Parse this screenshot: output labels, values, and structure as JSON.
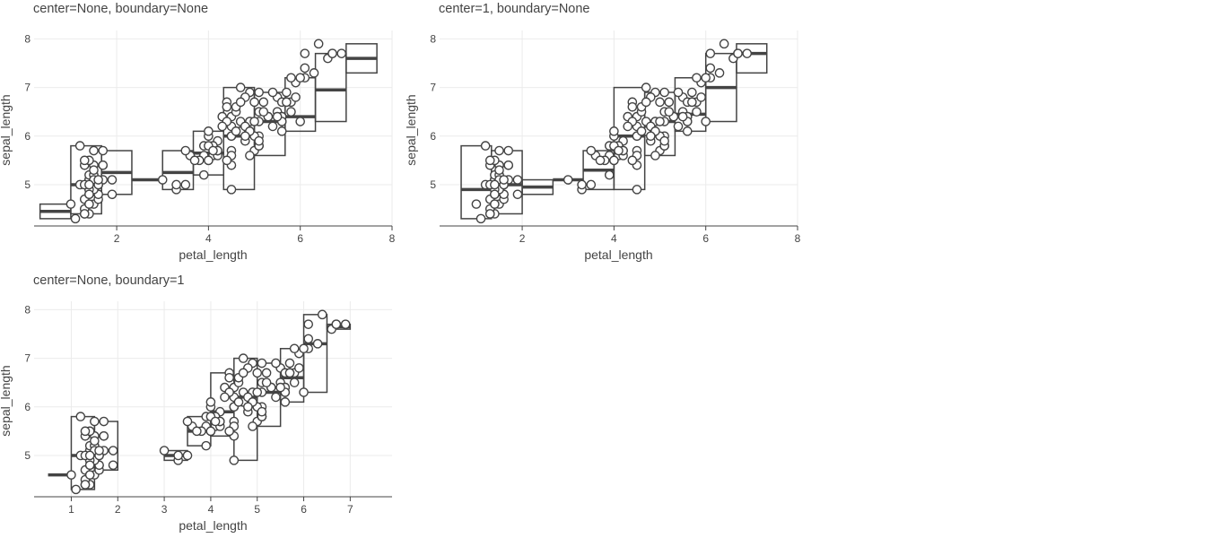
{
  "chart_data": [
    {
      "type": "scatter",
      "title": "center=None, boundary=None",
      "xlabel": "petal_length",
      "ylabel": "sepal_length",
      "xlim": [
        0.2,
        8.0
      ],
      "ylim": [
        4.15,
        8.1
      ],
      "xticks": [
        2,
        4,
        6,
        8
      ],
      "yticks": [
        5,
        6,
        7,
        8
      ],
      "grid": true,
      "bins": [
        {
          "x0": 0.33,
          "x1": 1.0,
          "ymin": 4.3,
          "ymax": 4.6,
          "median": 4.45
        },
        {
          "x0": 1.0,
          "x1": 1.67,
          "ymin": 4.4,
          "ymax": 5.8,
          "median": 5.0
        },
        {
          "x0": 1.67,
          "x1": 2.33,
          "ymin": 4.8,
          "ymax": 5.7,
          "median": 5.25
        },
        {
          "x0": 2.33,
          "x1": 3.0,
          "ymin": 5.1,
          "ymax": 5.1,
          "median": 5.1
        },
        {
          "x0": 3.0,
          "x1": 3.67,
          "ymin": 4.9,
          "ymax": 5.7,
          "median": 5.25
        },
        {
          "x0": 3.67,
          "x1": 4.33,
          "ymin": 5.2,
          "ymax": 6.1,
          "median": 5.65
        },
        {
          "x0": 4.33,
          "x1": 5.0,
          "ymin": 4.9,
          "ymax": 7.0,
          "median": 6.0
        },
        {
          "x0": 5.0,
          "x1": 5.67,
          "ymin": 5.6,
          "ymax": 6.9,
          "median": 6.3
        },
        {
          "x0": 5.67,
          "x1": 6.33,
          "ymin": 6.1,
          "ymax": 7.2,
          "median": 6.4
        },
        {
          "x0": 6.33,
          "x1": 7.0,
          "ymin": 6.3,
          "ymax": 7.7,
          "median": 6.95
        },
        {
          "x0": 7.0,
          "x1": 7.67,
          "ymin": 7.3,
          "ymax": 7.9,
          "median": 7.6
        }
      ]
    },
    {
      "type": "scatter",
      "title": "center=1, boundary=None",
      "xlabel": "petal_length",
      "ylabel": "sepal_length",
      "xlim": [
        0.2,
        8.0
      ],
      "ylim": [
        4.15,
        8.1
      ],
      "xticks": [
        2,
        4,
        6,
        8
      ],
      "yticks": [
        5,
        6,
        7,
        8
      ],
      "grid": true,
      "bins": [
        {
          "x0": 0.67,
          "x1": 1.33,
          "ymin": 4.3,
          "ymax": 5.8,
          "median": 4.9
        },
        {
          "x0": 1.33,
          "x1": 2.0,
          "ymin": 4.4,
          "ymax": 5.7,
          "median": 5.0
        },
        {
          "x0": 2.0,
          "x1": 2.67,
          "ymin": 4.8,
          "ymax": 5.1,
          "median": 4.95
        },
        {
          "x0": 2.67,
          "x1": 3.33,
          "ymin": 5.1,
          "ymax": 5.1,
          "median": 5.1
        },
        {
          "x0": 3.33,
          "x1": 4.0,
          "ymin": 4.9,
          "ymax": 5.7,
          "median": 5.3
        },
        {
          "x0": 4.0,
          "x1": 4.67,
          "ymin": 4.9,
          "ymax": 7.0,
          "median": 6.0
        },
        {
          "x0": 4.67,
          "x1": 5.33,
          "ymin": 5.6,
          "ymax": 6.9,
          "median": 6.3
        },
        {
          "x0": 5.33,
          "x1": 6.0,
          "ymin": 6.1,
          "ymax": 7.2,
          "median": 6.45
        },
        {
          "x0": 6.0,
          "x1": 6.67,
          "ymin": 6.3,
          "ymax": 7.7,
          "median": 7.0
        },
        {
          "x0": 6.67,
          "x1": 7.33,
          "ymin": 7.3,
          "ymax": 7.9,
          "median": 7.7
        }
      ]
    },
    {
      "type": "scatter",
      "title": "center=None, boundary=1",
      "xlabel": "petal_length",
      "ylabel": "sepal_length",
      "xlim": [
        0.2,
        7.9
      ],
      "ylim": [
        4.15,
        8.1
      ],
      "xticks": [
        1,
        2,
        3,
        4,
        5,
        6,
        7
      ],
      "yticks": [
        5,
        6,
        7,
        8
      ],
      "grid": true,
      "bins": [
        {
          "x0": 0.5,
          "x1": 1.0,
          "ymin": 4.6,
          "ymax": 4.6,
          "median": 4.6
        },
        {
          "x0": 1.0,
          "x1": 1.5,
          "ymin": 4.3,
          "ymax": 5.8,
          "median": 5.0
        },
        {
          "x0": 1.5,
          "x1": 2.0,
          "ymin": 4.7,
          "ymax": 5.7,
          "median": 5.1
        },
        {
          "x0": 3.0,
          "x1": 3.5,
          "ymin": 4.9,
          "ymax": 5.1,
          "median": 5.0
        },
        {
          "x0": 3.5,
          "x1": 4.0,
          "ymin": 5.2,
          "ymax": 5.8,
          "median": 5.5
        },
        {
          "x0": 4.0,
          "x1": 4.5,
          "ymin": 5.4,
          "ymax": 6.7,
          "median": 5.9
        },
        {
          "x0": 4.5,
          "x1": 5.0,
          "ymin": 4.9,
          "ymax": 7.0,
          "median": 6.2
        },
        {
          "x0": 5.0,
          "x1": 5.5,
          "ymin": 5.6,
          "ymax": 6.9,
          "median": 6.3
        },
        {
          "x0": 5.5,
          "x1": 6.0,
          "ymin": 6.1,
          "ymax": 7.2,
          "median": 6.6
        },
        {
          "x0": 6.0,
          "x1": 6.5,
          "ymin": 6.3,
          "ymax": 7.9,
          "median": 7.3
        },
        {
          "x0": 6.5,
          "x1": 7.0,
          "ymin": 7.6,
          "ymax": 7.7,
          "median": 7.65
        }
      ]
    }
  ],
  "points": [
    [
      1.4,
      5.1
    ],
    [
      1.4,
      4.9
    ],
    [
      1.3,
      4.7
    ],
    [
      1.5,
      4.6
    ],
    [
      1.4,
      5.0
    ],
    [
      1.7,
      5.4
    ],
    [
      1.4,
      4.6
    ],
    [
      1.5,
      5.0
    ],
    [
      1.4,
      4.4
    ],
    [
      1.5,
      4.9
    ],
    [
      1.5,
      5.4
    ],
    [
      1.6,
      4.8
    ],
    [
      1.4,
      4.8
    ],
    [
      1.1,
      4.3
    ],
    [
      1.2,
      5.8
    ],
    [
      1.5,
      5.7
    ],
    [
      1.3,
      5.4
    ],
    [
      1.4,
      5.1
    ],
    [
      1.7,
      5.7
    ],
    [
      1.5,
      5.1
    ],
    [
      1.7,
      5.4
    ],
    [
      1.5,
      5.1
    ],
    [
      1.0,
      4.6
    ],
    [
      1.7,
      5.1
    ],
    [
      1.9,
      4.8
    ],
    [
      1.6,
      5.0
    ],
    [
      1.6,
      5.0
    ],
    [
      1.5,
      5.2
    ],
    [
      1.4,
      5.2
    ],
    [
      1.6,
      4.7
    ],
    [
      1.6,
      4.8
    ],
    [
      1.5,
      5.4
    ],
    [
      1.5,
      5.2
    ],
    [
      1.4,
      5.5
    ],
    [
      1.5,
      4.9
    ],
    [
      1.2,
      5.0
    ],
    [
      1.3,
      5.5
    ],
    [
      1.4,
      4.9
    ],
    [
      1.3,
      4.4
    ],
    [
      1.5,
      5.1
    ],
    [
      1.3,
      5.0
    ],
    [
      1.3,
      4.5
    ],
    [
      1.3,
      4.4
    ],
    [
      1.6,
      5.0
    ],
    [
      1.9,
      5.1
    ],
    [
      1.4,
      4.8
    ],
    [
      1.6,
      5.1
    ],
    [
      1.4,
      4.6
    ],
    [
      1.5,
      5.3
    ],
    [
      1.4,
      5.0
    ],
    [
      4.7,
      7.0
    ],
    [
      4.5,
      6.4
    ],
    [
      4.9,
      6.9
    ],
    [
      4.0,
      5.5
    ],
    [
      4.6,
      6.5
    ],
    [
      4.5,
      5.7
    ],
    [
      4.7,
      6.3
    ],
    [
      3.3,
      4.9
    ],
    [
      4.6,
      6.6
    ],
    [
      3.9,
      5.2
    ],
    [
      3.5,
      5.0
    ],
    [
      4.2,
      5.9
    ],
    [
      4.0,
      6.0
    ],
    [
      4.7,
      6.1
    ],
    [
      3.6,
      5.6
    ],
    [
      4.4,
      6.7
    ],
    [
      4.5,
      5.6
    ],
    [
      4.1,
      5.8
    ],
    [
      4.5,
      6.2
    ],
    [
      3.9,
      5.6
    ],
    [
      4.8,
      5.9
    ],
    [
      4.0,
      6.1
    ],
    [
      4.9,
      6.3
    ],
    [
      4.7,
      6.1
    ],
    [
      4.3,
      6.4
    ],
    [
      4.4,
      6.6
    ],
    [
      4.8,
      6.8
    ],
    [
      5.0,
      6.7
    ],
    [
      4.5,
      6.0
    ],
    [
      3.5,
      5.7
    ],
    [
      3.8,
      5.5
    ],
    [
      3.7,
      5.5
    ],
    [
      3.9,
      5.8
    ],
    [
      5.1,
      6.0
    ],
    [
      4.5,
      5.4
    ],
    [
      4.5,
      6.0
    ],
    [
      4.7,
      6.7
    ],
    [
      4.4,
      6.3
    ],
    [
      4.1,
      5.6
    ],
    [
      4.0,
      5.5
    ],
    [
      4.4,
      5.5
    ],
    [
      4.6,
      6.1
    ],
    [
      4.0,
      5.8
    ],
    [
      3.3,
      5.0
    ],
    [
      4.2,
      5.6
    ],
    [
      4.2,
      5.7
    ],
    [
      4.2,
      5.7
    ],
    [
      4.3,
      6.2
    ],
    [
      3.0,
      5.1
    ],
    [
      4.1,
      5.7
    ],
    [
      6.0,
      6.3
    ],
    [
      5.1,
      5.8
    ],
    [
      5.9,
      7.1
    ],
    [
      5.6,
      6.3
    ],
    [
      5.8,
      6.5
    ],
    [
      6.6,
      7.6
    ],
    [
      4.5,
      4.9
    ],
    [
      6.3,
      7.3
    ],
    [
      5.8,
      6.7
    ],
    [
      6.1,
      7.2
    ],
    [
      5.1,
      6.5
    ],
    [
      5.3,
      6.4
    ],
    [
      5.5,
      6.8
    ],
    [
      5.0,
      5.7
    ],
    [
      5.1,
      5.8
    ],
    [
      5.3,
      6.4
    ],
    [
      5.5,
      6.5
    ],
    [
      6.7,
      7.7
    ],
    [
      6.9,
      7.7
    ],
    [
      5.0,
      6.0
    ],
    [
      5.7,
      6.9
    ],
    [
      4.9,
      5.6
    ],
    [
      6.7,
      7.7
    ],
    [
      4.9,
      6.3
    ],
    [
      5.7,
      6.7
    ],
    [
      6.0,
      7.2
    ],
    [
      4.8,
      6.2
    ],
    [
      4.9,
      6.1
    ],
    [
      5.6,
      6.4
    ],
    [
      5.8,
      7.2
    ],
    [
      6.1,
      7.4
    ],
    [
      6.4,
      7.9
    ],
    [
      5.6,
      6.4
    ],
    [
      5.1,
      6.3
    ],
    [
      5.6,
      6.1
    ],
    [
      6.1,
      7.7
    ],
    [
      5.6,
      6.3
    ],
    [
      5.5,
      6.4
    ],
    [
      4.8,
      6.0
    ],
    [
      5.4,
      6.9
    ],
    [
      5.6,
      6.7
    ],
    [
      5.1,
      6.9
    ],
    [
      5.1,
      5.8
    ],
    [
      5.9,
      6.8
    ],
    [
      5.7,
      6.7
    ],
    [
      5.2,
      6.7
    ],
    [
      5.0,
      6.3
    ],
    [
      5.2,
      6.5
    ],
    [
      5.4,
      6.2
    ],
    [
      5.1,
      5.9
    ]
  ],
  "icons": {
    "point_marker": "open-circle-marker"
  }
}
